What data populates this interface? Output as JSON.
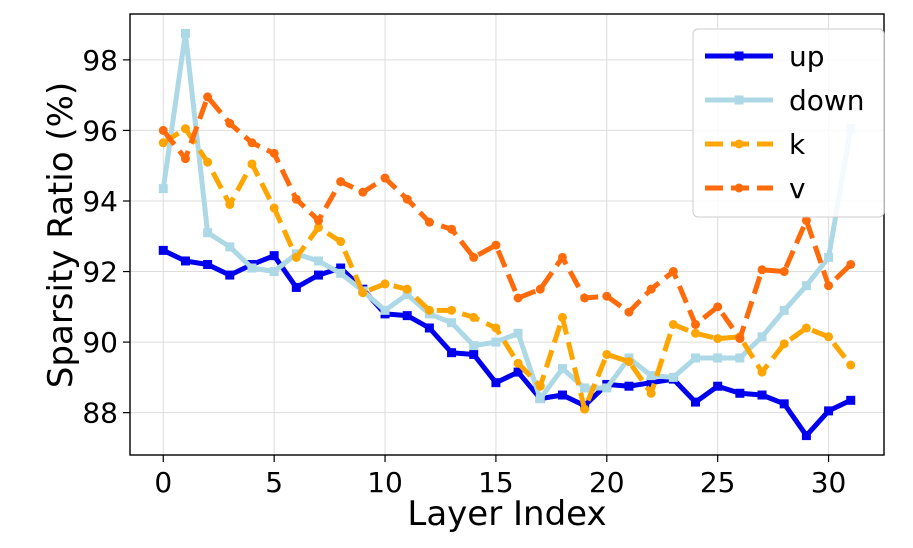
{
  "chart_data": {
    "type": "line",
    "title": "",
    "xlabel": "Layer Index",
    "ylabel": "Sparsity Ratio (%)",
    "xlim": [
      -1.5,
      32.5
    ],
    "ylim": [
      86.8,
      99.3
    ],
    "xticks": [
      0,
      5,
      10,
      15,
      20,
      25,
      30
    ],
    "yticks": [
      88,
      90,
      92,
      94,
      96,
      98
    ],
    "grid": true,
    "legend_position": "top-right",
    "x": [
      0,
      1,
      2,
      3,
      4,
      5,
      6,
      7,
      8,
      9,
      10,
      11,
      12,
      13,
      14,
      15,
      16,
      17,
      18,
      19,
      20,
      21,
      22,
      23,
      24,
      25,
      26,
      27,
      28,
      29,
      30,
      31
    ],
    "series": [
      {
        "name": "up",
        "color": "#0000ee",
        "dash": "solid",
        "marker": "square",
        "values": [
          92.6,
          92.3,
          92.2,
          91.9,
          92.2,
          92.45,
          91.55,
          91.9,
          92.1,
          91.5,
          90.8,
          90.75,
          90.4,
          89.7,
          89.65,
          88.85,
          89.15,
          88.4,
          88.5,
          88.2,
          88.8,
          88.75,
          88.85,
          88.95,
          88.3,
          88.75,
          88.55,
          88.5,
          88.25,
          87.35,
          88.05,
          88.35
        ]
      },
      {
        "name": "down",
        "color": "#add8e6",
        "dash": "solid",
        "marker": "square",
        "values": [
          94.35,
          98.75,
          93.1,
          92.7,
          92.1,
          92.0,
          92.5,
          92.3,
          91.95,
          91.45,
          90.9,
          91.35,
          90.8,
          90.55,
          89.9,
          90.0,
          90.25,
          88.4,
          89.25,
          88.7,
          88.7,
          89.55,
          89.05,
          89.0,
          89.55,
          89.55,
          89.55,
          90.15,
          90.9,
          91.6,
          92.4,
          96.05
        ]
      },
      {
        "name": "k",
        "color": "#ffa500",
        "dash": "dashed",
        "marker": "circle",
        "values": [
          95.65,
          96.05,
          95.1,
          93.9,
          95.05,
          93.8,
          92.4,
          93.25,
          92.85,
          91.4,
          91.65,
          91.5,
          90.9,
          90.9,
          90.7,
          90.4,
          89.4,
          88.75,
          90.7,
          88.1,
          89.65,
          89.45,
          88.55,
          90.5,
          90.25,
          90.1,
          90.15,
          89.15,
          89.95,
          90.4,
          90.15,
          89.35
        ]
      },
      {
        "name": "v",
        "color": "#ff6a0a",
        "dash": "dashed",
        "marker": "circle",
        "values": [
          96.0,
          95.2,
          96.95,
          96.2,
          95.65,
          95.35,
          94.05,
          93.45,
          94.55,
          94.25,
          94.65,
          94.05,
          93.4,
          93.2,
          92.4,
          92.75,
          91.25,
          91.5,
          92.4,
          91.25,
          91.3,
          90.85,
          91.5,
          92.0,
          90.5,
          91.0,
          90.1,
          92.05,
          92.0,
          93.45,
          91.6,
          92.2
        ]
      }
    ]
  }
}
